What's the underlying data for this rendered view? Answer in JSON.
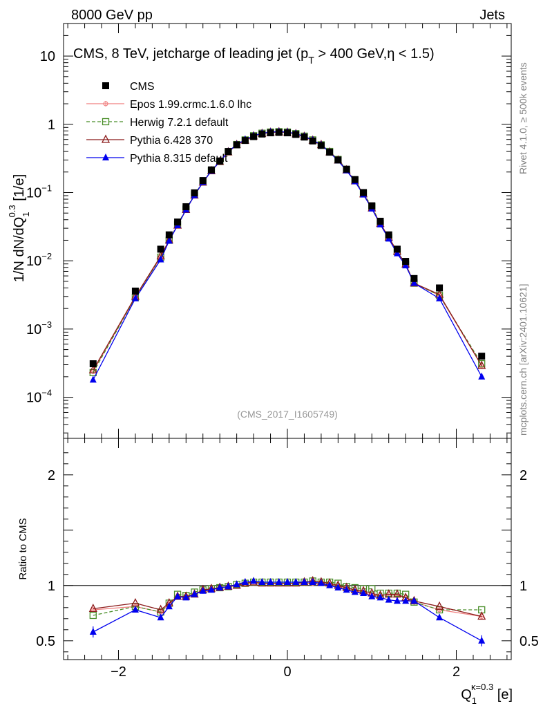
{
  "header": {
    "left": "8000 GeV pp",
    "right": "Jets"
  },
  "side_labels": {
    "rivet": "Rivet 4.1.0, ≥ 500k events",
    "mcplots": "mcplots.cern.ch [arXiv:2401.10621]"
  },
  "chart_data": {
    "type": "scatter",
    "title": "CMS, 8 TeV, jetcharge of leading jet (p",
    "title_sub": "T",
    "title_tail": " > 400 GeV,η < 1.5)",
    "analysis_id": "(CMS_2017_I1605749)",
    "xlabel": "Q",
    "xlabel_sub": "1",
    "xlabel_sup": "κ=0.3",
    "xlabel_unit": " [e]",
    "ylabel": "1/N dN/dQ",
    "ylabel_sub": "1",
    "ylabel_sup": "0.3",
    "ylabel_unit": " [1/e]",
    "ratio_ylabel": "Ratio to CMS",
    "xlim": [
      -2.65,
      2.65
    ],
    "ylim": [
      2.5e-05,
      30
    ],
    "ratio_ylim": [
      0.33,
      2.33
    ],
    "yscale": "log",
    "x_ticks": [
      {
        "value": -2,
        "label": "−2"
      },
      {
        "value": 0,
        "label": "0"
      },
      {
        "value": 2,
        "label": "2"
      }
    ],
    "y_ticks": [
      {
        "value": 10,
        "base": "10",
        "exp": ""
      },
      {
        "value": 1,
        "base": "1",
        "exp": ""
      },
      {
        "value": 0.1,
        "base": "10",
        "exp": "−1"
      },
      {
        "value": 0.01,
        "base": "10",
        "exp": "−2"
      },
      {
        "value": 0.001,
        "base": "10",
        "exp": "−3"
      },
      {
        "value": 0.0001,
        "base": "10",
        "exp": "−4"
      }
    ],
    "ratio_ticks": [
      {
        "value": 0.5,
        "label": "0.5"
      },
      {
        "value": 1,
        "label": "1"
      },
      {
        "value": 2,
        "label": "2"
      }
    ],
    "x": [
      -2.3,
      -1.8,
      -1.5,
      -1.4,
      -1.3,
      -1.2,
      -1.1,
      -1.0,
      -0.9,
      -0.8,
      -0.7,
      -0.6,
      -0.5,
      -0.4,
      -0.3,
      -0.2,
      -0.1,
      0.0,
      0.1,
      0.2,
      0.3,
      0.4,
      0.5,
      0.6,
      0.7,
      0.8,
      0.9,
      1.0,
      1.1,
      1.2,
      1.3,
      1.4,
      1.5,
      1.8,
      2.3
    ],
    "series": [
      {
        "name": "CMS",
        "color": "#000000",
        "marker": "square",
        "values": [
          0.00031,
          0.0036,
          0.0148,
          0.024,
          0.037,
          0.062,
          0.099,
          0.15,
          0.215,
          0.29,
          0.4,
          0.5,
          0.58,
          0.66,
          0.72,
          0.75,
          0.76,
          0.75,
          0.71,
          0.65,
          0.57,
          0.49,
          0.39,
          0.3,
          0.22,
          0.155,
          0.1,
          0.064,
          0.038,
          0.024,
          0.0148,
          0.0098,
          0.0055,
          0.004,
          0.0004
        ],
        "ratio": [
          1,
          1,
          1,
          1,
          1,
          1,
          1,
          1,
          1,
          1,
          1,
          1,
          1,
          1,
          1,
          1,
          1,
          1,
          1,
          1,
          1,
          1,
          1,
          1,
          1,
          1,
          1,
          1,
          1,
          1,
          1,
          1,
          1,
          1,
          1
        ]
      },
      {
        "name": "Epos 1.99.crmc.1.6.0 lhc",
        "color": "#f08080",
        "marker": "cross-circle",
        "dash": "",
        "values": [
          0.00024,
          0.0029,
          0.0112,
          0.02,
          0.033,
          0.056,
          0.091,
          0.142,
          0.207,
          0.285,
          0.395,
          0.5,
          0.59,
          0.67,
          0.73,
          0.76,
          0.77,
          0.76,
          0.72,
          0.66,
          0.58,
          0.5,
          0.39,
          0.295,
          0.212,
          0.146,
          0.094,
          0.058,
          0.035,
          0.022,
          0.0135,
          0.0087,
          0.0047,
          0.0031,
          0.00029
        ],
        "ratio": [
          0.78,
          0.81,
          0.76,
          0.83,
          0.9,
          0.9,
          0.92,
          0.95,
          0.96,
          0.98,
          0.99,
          1.0,
          1.02,
          1.02,
          1.02,
          1.02,
          1.02,
          1.02,
          1.02,
          1.02,
          1.02,
          1.02,
          1.01,
          0.99,
          0.97,
          0.95,
          0.94,
          0.91,
          0.91,
          0.92,
          0.91,
          0.89,
          0.85,
          0.78,
          0.72
        ]
      },
      {
        "name": "Herwig 7.2.1 default",
        "color": "#4a8f2a",
        "marker": "open-square",
        "dash": "5,3",
        "values": [
          0.00023,
          0.0029,
          0.0113,
          0.02,
          0.034,
          0.057,
          0.093,
          0.143,
          0.209,
          0.285,
          0.395,
          0.505,
          0.59,
          0.68,
          0.74,
          0.77,
          0.78,
          0.77,
          0.73,
          0.67,
          0.59,
          0.5,
          0.4,
          0.305,
          0.218,
          0.152,
          0.097,
          0.062,
          0.035,
          0.022,
          0.0137,
          0.009,
          0.0047,
          0.0031,
          0.00031
        ],
        "ratio": [
          0.73,
          0.81,
          0.76,
          0.84,
          0.92,
          0.91,
          0.94,
          0.96,
          0.97,
          0.98,
          0.99,
          1.01,
          1.02,
          1.03,
          1.03,
          1.03,
          1.03,
          1.03,
          1.03,
          1.03,
          1.04,
          1.03,
          1.03,
          1.02,
          0.99,
          0.98,
          0.97,
          0.97,
          0.93,
          0.93,
          0.93,
          0.92,
          0.85,
          0.78,
          0.78
        ]
      },
      {
        "name": "Pythia 6.428 370",
        "color": "#8b1a1a",
        "marker": "open-triangle",
        "dash": "",
        "values": [
          0.00025,
          0.003,
          0.0117,
          0.02,
          0.033,
          0.056,
          0.091,
          0.141,
          0.207,
          0.283,
          0.392,
          0.5,
          0.58,
          0.67,
          0.73,
          0.76,
          0.77,
          0.76,
          0.72,
          0.66,
          0.58,
          0.5,
          0.39,
          0.297,
          0.213,
          0.147,
          0.095,
          0.059,
          0.035,
          0.022,
          0.0137,
          0.0089,
          0.0047,
          0.0032,
          0.00029
        ],
        "ratio": [
          0.79,
          0.84,
          0.78,
          0.84,
          0.9,
          0.9,
          0.92,
          0.96,
          0.97,
          0.98,
          0.99,
          1.0,
          1.02,
          1.03,
          1.02,
          1.02,
          1.02,
          1.02,
          1.02,
          1.03,
          1.04,
          1.03,
          1.02,
          1.0,
          0.98,
          0.96,
          0.95,
          0.93,
          0.91,
          0.92,
          0.92,
          0.89,
          0.86,
          0.81,
          0.72
        ]
      },
      {
        "name": "Pythia 8.315 default",
        "color": "#0000ee",
        "marker": "triangle",
        "dash": "",
        "values": [
          0.00018,
          0.0028,
          0.0104,
          0.0196,
          0.033,
          0.056,
          0.091,
          0.142,
          0.207,
          0.285,
          0.398,
          0.505,
          0.595,
          0.68,
          0.74,
          0.77,
          0.78,
          0.77,
          0.73,
          0.665,
          0.585,
          0.5,
          0.39,
          0.293,
          0.21,
          0.145,
          0.093,
          0.058,
          0.034,
          0.021,
          0.0128,
          0.0085,
          0.0047,
          0.0028,
          0.0002
        ],
        "ratio": [
          0.58,
          0.78,
          0.71,
          0.81,
          0.9,
          0.89,
          0.92,
          0.95,
          0.96,
          0.98,
          0.99,
          1.01,
          1.03,
          1.04,
          1.03,
          1.03,
          1.03,
          1.03,
          1.03,
          1.03,
          1.03,
          1.02,
          1.0,
          0.98,
          0.96,
          0.94,
          0.93,
          0.9,
          0.89,
          0.87,
          0.86,
          0.86,
          0.86,
          0.71,
          0.5
        ],
        "ratio_err": [
          0.05,
          0,
          0,
          0,
          0,
          0,
          0,
          0,
          0,
          0,
          0,
          0,
          0,
          0,
          0,
          0,
          0,
          0,
          0,
          0,
          0,
          0,
          0,
          0,
          0,
          0,
          0,
          0,
          0,
          0,
          0,
          0,
          0,
          0,
          0.05
        ]
      }
    ]
  }
}
